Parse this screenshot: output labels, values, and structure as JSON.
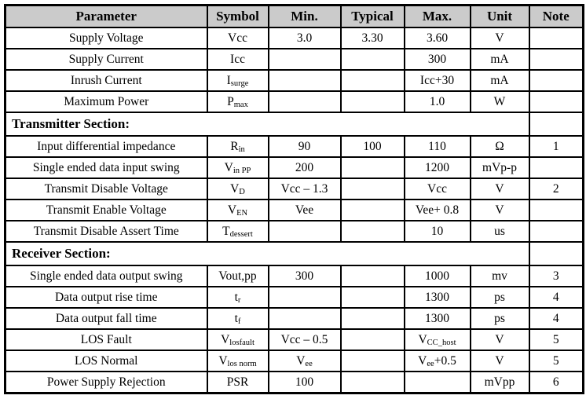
{
  "table": {
    "columns": [
      "Parameter",
      "Symbol",
      "Min.",
      "Typical",
      "Max.",
      "Unit",
      "Note"
    ],
    "colors": {
      "header_background": "#cbcbcb",
      "border": "#000000",
      "background": "#ffffff",
      "text": "#000000"
    },
    "rows": [
      {
        "type": "data",
        "parameter": "Supply Voltage",
        "symbol": "Vcc",
        "min": "3.0",
        "typical": "3.30",
        "max": "3.60",
        "unit": "V",
        "note": ""
      },
      {
        "type": "data",
        "parameter": "Supply Current",
        "symbol": "Icc",
        "min": "",
        "typical": "",
        "max": "300",
        "unit": "mA",
        "note": ""
      },
      {
        "type": "data",
        "parameter": "Inrush Current",
        "symbol": "I_{surge}",
        "min": "",
        "typical": "",
        "max": "Icc+30",
        "unit": "mA",
        "note": ""
      },
      {
        "type": "data",
        "parameter": "Maximum Power",
        "symbol": "P_{max}",
        "min": "",
        "typical": "",
        "max": "1.0",
        "unit": "W",
        "note": ""
      },
      {
        "type": "section",
        "title": "Transmitter Section:",
        "note": ""
      },
      {
        "type": "data",
        "parameter": "Input differential impedance",
        "symbol": "R_{in}",
        "min": "90",
        "typical": "100",
        "max": "110",
        "unit": "Ω",
        "note": "1"
      },
      {
        "type": "data",
        "parameter": "Single ended data input swing",
        "symbol": "V_{in PP}",
        "min": "200",
        "typical": "",
        "max": "1200",
        "unit": "mVp-p",
        "note": ""
      },
      {
        "type": "data",
        "parameter": "Transmit Disable Voltage",
        "symbol": "V_{D}",
        "min": "Vcc – 1.3",
        "typical": "",
        "max": "Vcc",
        "unit": "V",
        "note": "2"
      },
      {
        "type": "data",
        "parameter": "Transmit Enable Voltage",
        "symbol": "V_{EN}",
        "min": "Vee",
        "typical": "",
        "max": "Vee+ 0.8",
        "unit": "V",
        "note": ""
      },
      {
        "type": "data",
        "parameter": "Transmit Disable Assert Time",
        "symbol": "T_{dessert}",
        "min": "",
        "typical": "",
        "max": "10",
        "unit": "us",
        "note": ""
      },
      {
        "type": "section",
        "title": "Receiver Section:",
        "note": ""
      },
      {
        "type": "data",
        "parameter": "Single ended data output swing",
        "symbol": "Vout,pp",
        "min": "300",
        "typical": "",
        "max": "1000",
        "unit": "mv",
        "note": "3"
      },
      {
        "type": "data",
        "parameter": "Data output rise time",
        "symbol": "t_{r}",
        "min": "",
        "typical": "",
        "max": "1300",
        "unit": "ps",
        "note": "4"
      },
      {
        "type": "data",
        "parameter": "Data output fall time",
        "symbol": "t_{f}",
        "min": "",
        "typical": "",
        "max": "1300",
        "unit": "ps",
        "note": "4"
      },
      {
        "type": "data",
        "parameter": "LOS Fault",
        "symbol": "V_{losfault}",
        "min": "Vcc – 0.5",
        "typical": "",
        "max": "V_{CC_host}",
        "unit": "V",
        "note": "5"
      },
      {
        "type": "data",
        "parameter": "LOS Normal",
        "symbol": "V_{los norm}",
        "min": "V_{ee}",
        "typical": "",
        "max": "V_{ee}+0.5",
        "unit": "V",
        "note": "5"
      },
      {
        "type": "data",
        "parameter": "Power Supply Rejection",
        "symbol": "PSR",
        "min": "100",
        "typical": "",
        "max": "",
        "unit": "mVpp",
        "note": "6"
      }
    ]
  }
}
